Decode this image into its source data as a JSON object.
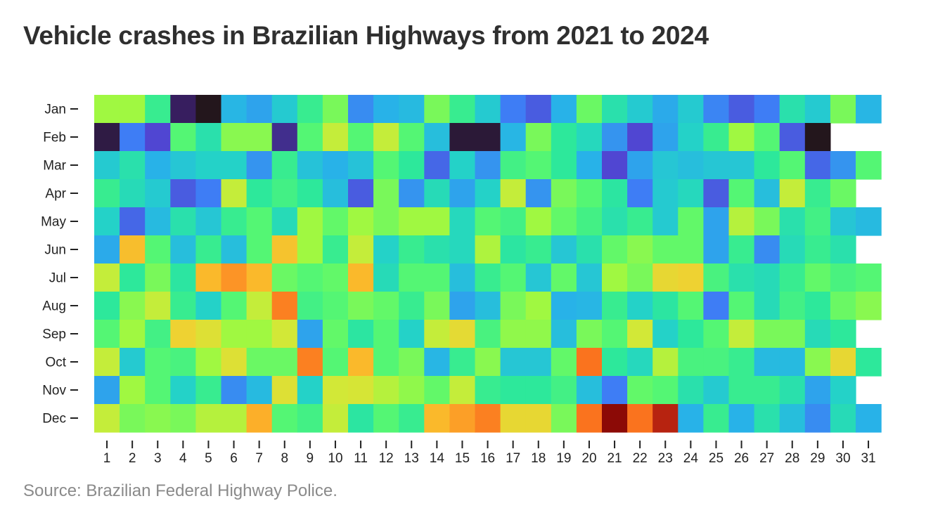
{
  "title": "Vehicle crashes in Brazilian Highways from 2021 to 2024",
  "source": "Source: Brazilian Federal Highway Police.",
  "chart_data": {
    "type": "heatmap",
    "title": "Vehicle crashes in Brazilian Highways from 2021 to 2024",
    "xlabel": "",
    "ylabel": "",
    "x_ticks": [
      "1",
      "2",
      "3",
      "4",
      "5",
      "6",
      "7",
      "8",
      "9",
      "10",
      "11",
      "12",
      "13",
      "14",
      "15",
      "16",
      "17",
      "18",
      "19",
      "20",
      "21",
      "22",
      "23",
      "24",
      "25",
      "26",
      "27",
      "28",
      "29",
      "30",
      "31"
    ],
    "y_ticks": [
      "Jan",
      "Feb",
      "Mar",
      "Apr",
      "May",
      "Jun",
      "Jul",
      "Aug",
      "Sep",
      "Oct",
      "Nov",
      "Dec"
    ],
    "value_range": [
      0,
      1
    ],
    "colormap": "turbo",
    "note_values": "relative intensity 0-1 estimated from colour; no colour bar printed",
    "values": [
      [
        0.55,
        0.55,
        0.4,
        0.05,
        0.0,
        0.23,
        0.2,
        0.28,
        0.4,
        0.5,
        0.17,
        0.22,
        0.24,
        0.5,
        0.4,
        0.28,
        0.15,
        0.12,
        0.22,
        0.48,
        0.35,
        0.28,
        0.21,
        0.28,
        0.16,
        0.12,
        0.15,
        0.35,
        0.28,
        0.5,
        0.23
      ],
      [
        0.03,
        0.15,
        0.1,
        0.45,
        0.35,
        0.52,
        0.52,
        0.07,
        0.45,
        0.6,
        0.45,
        0.6,
        0.45,
        0.25,
        0.02,
        0.02,
        0.23,
        0.5,
        0.38,
        0.32,
        0.18,
        0.1,
        0.2,
        0.3,
        0.4,
        0.55,
        0.45,
        0.12,
        0.0,
        null,
        null
      ],
      [
        0.28,
        0.35,
        0.22,
        0.27,
        0.3,
        0.3,
        0.18,
        0.4,
        0.26,
        0.22,
        0.26,
        0.45,
        0.38,
        0.13,
        0.3,
        0.18,
        0.42,
        0.45,
        0.38,
        0.22,
        0.1,
        0.2,
        0.27,
        0.25,
        0.27,
        0.27,
        0.38,
        0.45,
        0.13,
        0.18,
        0.45
      ],
      [
        0.4,
        0.33,
        0.28,
        0.12,
        0.15,
        0.6,
        0.38,
        0.42,
        0.38,
        0.25,
        0.12,
        0.5,
        0.18,
        0.33,
        0.2,
        0.3,
        0.6,
        0.18,
        0.5,
        0.45,
        0.37,
        0.15,
        0.28,
        0.32,
        0.12,
        0.45,
        0.25,
        0.6,
        0.4,
        0.48,
        null
      ],
      [
        0.3,
        0.13,
        0.24,
        0.35,
        0.27,
        0.4,
        0.45,
        0.33,
        0.55,
        0.47,
        0.55,
        0.5,
        0.55,
        0.55,
        0.32,
        0.45,
        0.42,
        0.55,
        0.47,
        0.42,
        0.35,
        0.4,
        0.28,
        0.47,
        0.2,
        0.58,
        0.5,
        0.35,
        0.42,
        0.27,
        0.24
      ],
      [
        0.21,
        0.74,
        0.45,
        0.25,
        0.4,
        0.25,
        0.45,
        0.73,
        0.55,
        0.4,
        0.6,
        0.3,
        0.4,
        0.35,
        0.32,
        0.57,
        0.37,
        0.4,
        0.27,
        0.35,
        0.47,
        0.52,
        0.47,
        0.47,
        0.2,
        0.4,
        0.17,
        0.33,
        0.4,
        0.35,
        null
      ],
      [
        0.6,
        0.38,
        0.5,
        0.37,
        0.75,
        0.82,
        0.75,
        0.48,
        0.45,
        0.47,
        0.75,
        0.33,
        0.45,
        0.45,
        0.25,
        0.4,
        0.45,
        0.27,
        0.47,
        0.27,
        0.55,
        0.5,
        0.68,
        0.7,
        0.43,
        0.35,
        0.33,
        0.4,
        0.47,
        0.43,
        0.45
      ],
      [
        0.38,
        0.52,
        0.6,
        0.4,
        0.3,
        0.45,
        0.6,
        0.85,
        0.42,
        0.45,
        0.5,
        0.47,
        0.4,
        0.5,
        0.2,
        0.25,
        0.5,
        0.55,
        0.22,
        0.23,
        0.4,
        0.3,
        0.37,
        0.45,
        0.15,
        0.45,
        0.33,
        0.42,
        0.38,
        0.48,
        0.52
      ],
      [
        0.45,
        0.55,
        0.42,
        0.7,
        0.65,
        0.55,
        0.55,
        0.62,
        0.2,
        0.47,
        0.37,
        0.45,
        0.3,
        0.6,
        0.67,
        0.43,
        0.53,
        0.53,
        0.25,
        0.5,
        0.45,
        0.62,
        0.3,
        0.38,
        0.45,
        0.6,
        0.5,
        0.5,
        0.33,
        0.38,
        null
      ],
      [
        0.6,
        0.28,
        0.45,
        0.43,
        0.55,
        0.65,
        0.48,
        0.48,
        0.85,
        0.45,
        0.75,
        0.45,
        0.5,
        0.23,
        0.4,
        0.52,
        0.27,
        0.27,
        0.47,
        0.87,
        0.38,
        0.32,
        0.58,
        0.43,
        0.43,
        0.4,
        0.24,
        0.24,
        0.52,
        0.68,
        0.38
      ],
      [
        0.2,
        0.55,
        0.45,
        0.3,
        0.4,
        0.17,
        0.24,
        0.65,
        0.3,
        0.62,
        0.63,
        0.58,
        0.53,
        0.47,
        0.6,
        0.4,
        0.38,
        0.38,
        0.42,
        0.25,
        0.15,
        0.47,
        0.45,
        0.35,
        0.28,
        0.4,
        0.4,
        0.35,
        0.2,
        0.3,
        null
      ],
      [
        0.6,
        0.5,
        0.52,
        0.5,
        0.58,
        0.58,
        0.77,
        0.45,
        0.42,
        0.6,
        0.37,
        0.45,
        0.4,
        0.75,
        0.8,
        0.85,
        0.68,
        0.68,
        0.5,
        0.87,
        1.0,
        0.87,
        0.95,
        0.22,
        0.4,
        0.22,
        0.35,
        0.25,
        0.17,
        0.33,
        0.22
      ]
    ]
  }
}
